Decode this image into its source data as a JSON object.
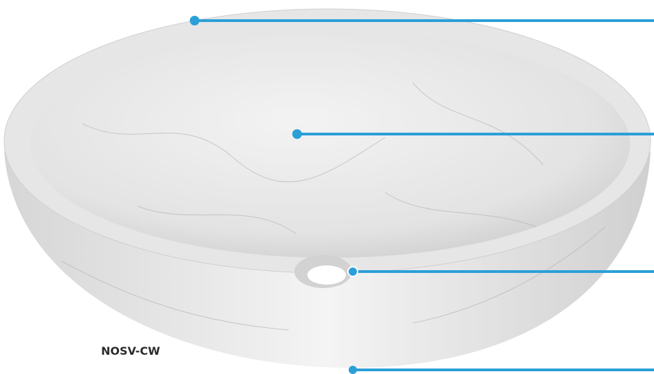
{
  "label": "NOSV-CW"
}
